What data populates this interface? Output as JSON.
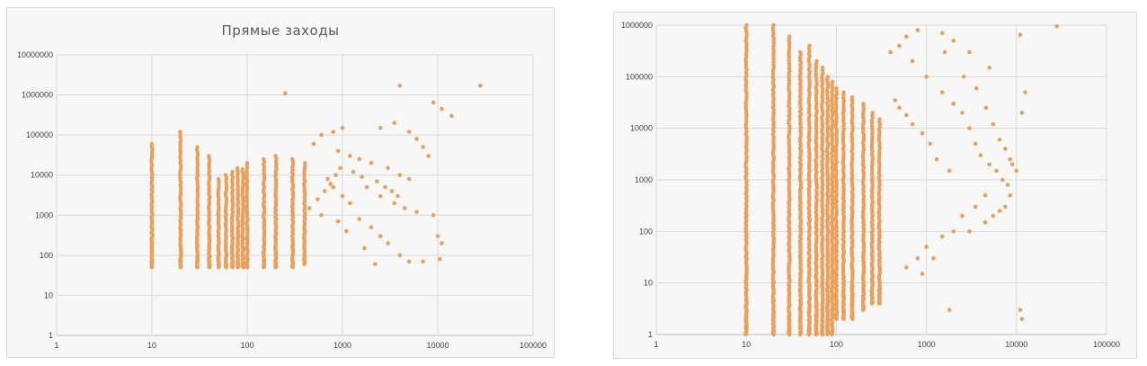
{
  "chart_data": [
    {
      "type": "scatter",
      "title": "Прямые заходы",
      "x_scale": "log",
      "y_scale": "log",
      "xlim": [
        1,
        100000
      ],
      "ylim": [
        1,
        10000000
      ],
      "x_ticks": [
        "1",
        "10",
        "100",
        "1000",
        "10000",
        "100000"
      ],
      "y_ticks": [
        "1",
        "10",
        "100",
        "1000",
        "10000",
        "100000",
        "1000000",
        "10000000"
      ],
      "grid": true,
      "color": "#E8A05C",
      "bands": [
        {
          "x": 10,
          "ymin": 50,
          "ymax": 60000
        },
        {
          "x": 20,
          "ymin": 50,
          "ymax": 120000
        },
        {
          "x": 30,
          "ymin": 50,
          "ymax": 50000
        },
        {
          "x": 40,
          "ymin": 50,
          "ymax": 30000
        },
        {
          "x": 50,
          "ymin": 50,
          "ymax": 8000
        },
        {
          "x": 60,
          "ymin": 50,
          "ymax": 10000
        },
        {
          "x": 70,
          "ymin": 50,
          "ymax": 12000
        },
        {
          "x": 80,
          "ymin": 50,
          "ymax": 15000
        },
        {
          "x": 90,
          "ymin": 50,
          "ymax": 14000
        },
        {
          "x": 100,
          "ymin": 50,
          "ymax": 20000
        },
        {
          "x": 150,
          "ymin": 50,
          "ymax": 25000
        },
        {
          "x": 200,
          "ymin": 50,
          "ymax": 30000
        },
        {
          "x": 300,
          "ymin": 50,
          "ymax": 25000
        },
        {
          "x": 400,
          "ymin": 60,
          "ymax": 20000
        }
      ],
      "points": [
        [
          250,
          1100000
        ],
        [
          4000,
          1700000
        ],
        [
          28000,
          1700000
        ],
        [
          9000,
          650000
        ],
        [
          11000,
          450000
        ],
        [
          14000,
          300000
        ],
        [
          3500,
          200000
        ],
        [
          2500,
          150000
        ],
        [
          5000,
          120000
        ],
        [
          6000,
          80000
        ],
        [
          7000,
          50000
        ],
        [
          8000,
          30000
        ],
        [
          1000,
          150000
        ],
        [
          800,
          120000
        ],
        [
          600,
          100000
        ],
        [
          500,
          60000
        ],
        [
          900,
          40000
        ],
        [
          1200,
          30000
        ],
        [
          1500,
          25000
        ],
        [
          2000,
          20000
        ],
        [
          3000,
          15000
        ],
        [
          4000,
          10000
        ],
        [
          5000,
          8000
        ],
        [
          1800,
          5000
        ],
        [
          2500,
          3000
        ],
        [
          3500,
          2000
        ],
        [
          4500,
          1500
        ],
        [
          6000,
          1200
        ],
        [
          700,
          8000
        ],
        [
          800,
          5000
        ],
        [
          1000,
          3000
        ],
        [
          1200,
          2000
        ],
        [
          1500,
          800
        ],
        [
          2000,
          500
        ],
        [
          2500,
          300
        ],
        [
          3000,
          200
        ],
        [
          9000,
          1000
        ],
        [
          10000,
          300
        ],
        [
          11000,
          200
        ],
        [
          10500,
          80
        ],
        [
          7000,
          70
        ],
        [
          5000,
          70
        ],
        [
          4000,
          100
        ],
        [
          2200,
          60
        ],
        [
          1700,
          150
        ],
        [
          1100,
          400
        ],
        [
          900,
          700
        ],
        [
          600,
          1000
        ],
        [
          450,
          1500
        ],
        [
          550,
          2500
        ],
        [
          650,
          4000
        ],
        [
          750,
          6000
        ],
        [
          850,
          10000
        ],
        [
          950,
          15000
        ],
        [
          1300,
          12000
        ],
        [
          1600,
          9000
        ],
        [
          2300,
          7000
        ],
        [
          2800,
          5000
        ],
        [
          3300,
          4000
        ],
        [
          3800,
          3000
        ]
      ]
    },
    {
      "type": "scatter",
      "title": "",
      "x_scale": "log",
      "y_scale": "log",
      "xlim": [
        1,
        100000
      ],
      "ylim": [
        1,
        1000000
      ],
      "x_ticks": [
        "1",
        "10",
        "100",
        "1000",
        "10000",
        "100000"
      ],
      "y_ticks": [
        "1",
        "10",
        "100",
        "1000",
        "10000",
        "100000",
        "1000000"
      ],
      "grid": true,
      "color": "#E8A05C",
      "bands": [
        {
          "x": 10,
          "ymin": 1,
          "ymax": 1000000
        },
        {
          "x": 20,
          "ymin": 1,
          "ymax": 1000000
        },
        {
          "x": 30,
          "ymin": 1,
          "ymax": 600000
        },
        {
          "x": 40,
          "ymin": 1,
          "ymax": 300000
        },
        {
          "x": 50,
          "ymin": 1,
          "ymax": 400000
        },
        {
          "x": 60,
          "ymin": 1,
          "ymax": 200000
        },
        {
          "x": 70,
          "ymin": 1,
          "ymax": 150000
        },
        {
          "x": 80,
          "ymin": 1,
          "ymax": 100000
        },
        {
          "x": 90,
          "ymin": 1,
          "ymax": 80000
        },
        {
          "x": 100,
          "ymin": 2,
          "ymax": 60000
        },
        {
          "x": 120,
          "ymin": 2,
          "ymax": 50000
        },
        {
          "x": 150,
          "ymin": 2,
          "ymax": 40000
        },
        {
          "x": 200,
          "ymin": 3,
          "ymax": 30000
        },
        {
          "x": 250,
          "ymin": 4,
          "ymax": 20000
        },
        {
          "x": 300,
          "ymin": 4,
          "ymax": 15000
        }
      ],
      "points": [
        [
          28000,
          950000
        ],
        [
          11000,
          650000
        ],
        [
          12500,
          50000
        ],
        [
          11500,
          20000
        ],
        [
          11000,
          3
        ],
        [
          11500,
          2
        ],
        [
          1800,
          3
        ],
        [
          900,
          15
        ],
        [
          1200,
          30
        ],
        [
          5000,
          150000
        ],
        [
          3000,
          300000
        ],
        [
          2000,
          500000
        ],
        [
          1500,
          700000
        ],
        [
          800,
          800000
        ],
        [
          600,
          600000
        ],
        [
          500,
          400000
        ],
        [
          400,
          300000
        ],
        [
          700,
          200000
        ],
        [
          1000,
          100000
        ],
        [
          1500,
          50000
        ],
        [
          2000,
          30000
        ],
        [
          2500,
          20000
        ],
        [
          3000,
          10000
        ],
        [
          3500,
          5000
        ],
        [
          4000,
          3000
        ],
        [
          5000,
          2000
        ],
        [
          6000,
          1500
        ],
        [
          7000,
          1000
        ],
        [
          8000,
          800
        ],
        [
          4500,
          500
        ],
        [
          3500,
          300
        ],
        [
          2500,
          200
        ],
        [
          2000,
          100
        ],
        [
          1500,
          80
        ],
        [
          1000,
          50
        ],
        [
          800,
          30
        ],
        [
          600,
          20
        ],
        [
          9000,
          2000
        ],
        [
          10000,
          1500
        ],
        [
          8500,
          500
        ],
        [
          7500,
          300
        ],
        [
          6500,
          250
        ],
        [
          5500,
          200
        ],
        [
          4500,
          150
        ],
        [
          3000,
          100
        ],
        [
          1800,
          1500
        ],
        [
          1300,
          2500
        ],
        [
          1100,
          5000
        ],
        [
          900,
          8000
        ],
        [
          700,
          12000
        ],
        [
          600,
          18000
        ],
        [
          500,
          25000
        ],
        [
          450,
          35000
        ],
        [
          1600,
          300000
        ],
        [
          2600,
          100000
        ],
        [
          3600,
          60000
        ],
        [
          4600,
          25000
        ],
        [
          5500,
          12000
        ],
        [
          6500,
          6000
        ],
        [
          7500,
          4000
        ],
        [
          8500,
          2500
        ]
      ]
    }
  ]
}
